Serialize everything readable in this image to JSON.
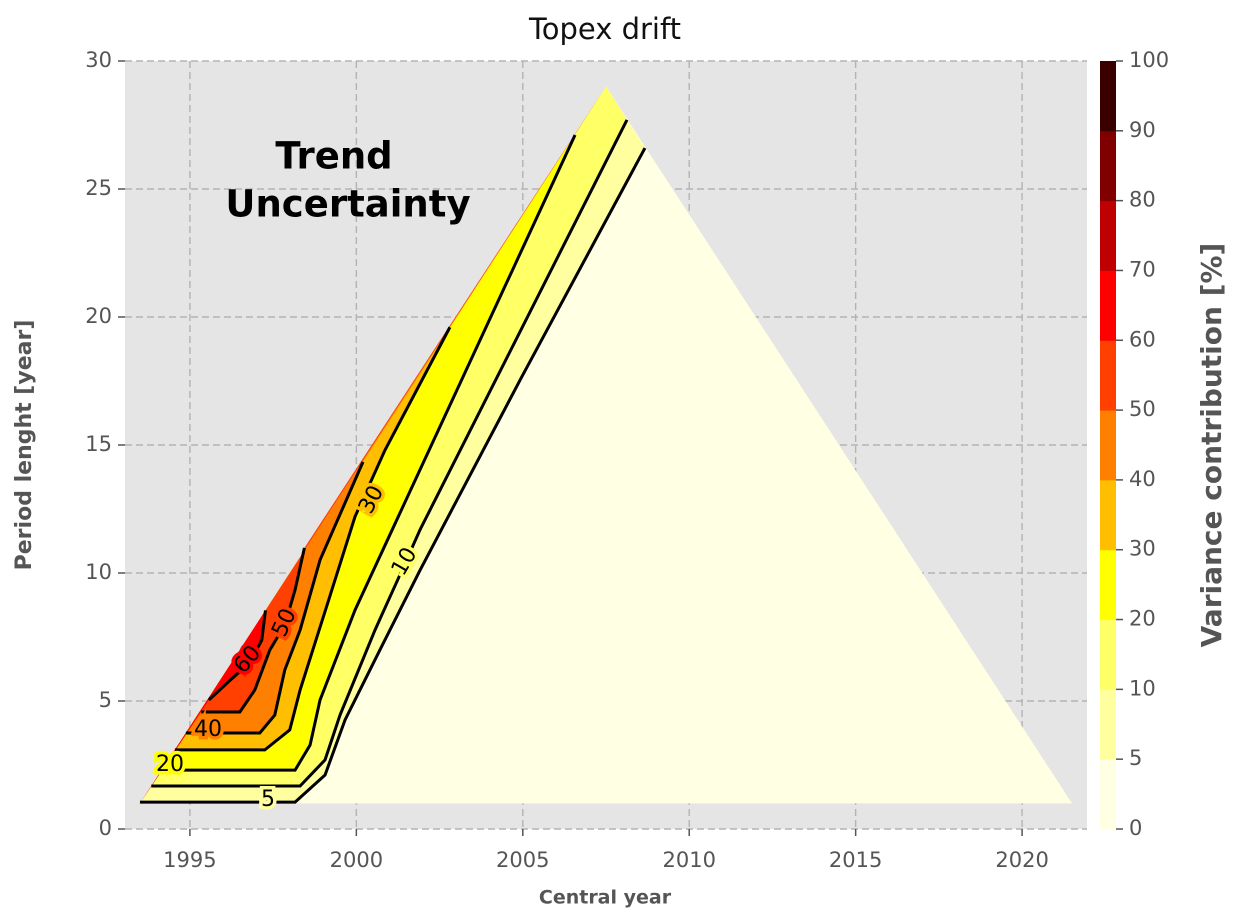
{
  "chart_data": {
    "type": "contour",
    "title": "Topex drift",
    "xlabel": "Central year",
    "ylabel": "Period lenght [year]",
    "colorbar_label": "Variance contribution [%]",
    "annotation": [
      "Trend",
      "Uncertainty"
    ],
    "xlim": [
      1993.05,
      2021.95
    ],
    "ylim": [
      0,
      30
    ],
    "xticks": [
      1995,
      2000,
      2005,
      2010,
      2015,
      2020
    ],
    "yticks": [
      0,
      5,
      10,
      15,
      20,
      25,
      30
    ],
    "grid": true,
    "levels": [
      0,
      5,
      10,
      20,
      30,
      40,
      50,
      60,
      70,
      80,
      90,
      100
    ],
    "colors": [
      "#ffffe4",
      "#ffffa0",
      "#ffff66",
      "#ffff00",
      "#ffbf00",
      "#ff8000",
      "#ff4000",
      "#ff0000",
      "#bf0000",
      "#800000",
      "#3a0000"
    ],
    "domain": {
      "x": [
        1993.5,
        2007.5,
        2021.5
      ],
      "y": [
        1,
        29,
        1
      ]
    },
    "contours": [
      {
        "level": 5,
        "x": [
          1993.5,
          1998.0,
          1998.16,
          1999.06,
          1999.66,
          2000.71,
          2001.91,
          2004.92,
          2008.67
        ],
        "y": [
          1.05,
          1.05,
          1.05,
          2.11,
          4.26,
          7.0,
          10.1,
          17.54,
          26.6
        ]
      },
      {
        "level": 10,
        "x": [
          1993.84,
          1998.31,
          1999.06,
          1999.51,
          2000.56,
          2001.3,
          2001.91,
          2008.13
        ],
        "y": [
          1.68,
          1.68,
          2.7,
          4.45,
          7.77,
          9.9,
          11.68,
          27.7
        ]
      },
      {
        "level": 20,
        "x": [
          1994.15,
          1998.16,
          1998.61,
          1998.91,
          1999.96,
          2006.57
        ],
        "y": [
          2.3,
          2.3,
          3.28,
          5.04,
          8.55,
          27.11
        ]
      },
      {
        "level": 30,
        "x": [
          1994.55,
          1997.25,
          1998.0,
          1998.31,
          1999.06,
          1999.96,
          2000.86,
          2002.81
        ],
        "y": [
          3.09,
          3.09,
          3.87,
          5.43,
          8.5,
          12.2,
          14.8,
          19.6
        ]
      },
      {
        "level": 40,
        "x": [
          1994.88,
          1997.1,
          1997.55,
          1997.85,
          1998.31,
          1998.91,
          2000.2
        ],
        "y": [
          3.75,
          3.75,
          4.45,
          6.21,
          7.77,
          10.51,
          14.34
        ]
      },
      {
        "level": 50,
        "x": [
          1995.34,
          1996.5,
          1996.95,
          1997.4,
          1997.85,
          1998.16,
          1998.44
        ],
        "y": [
          4.57,
          4.57,
          5.43,
          6.99,
          7.97,
          9.34,
          10.98
        ]
      },
      {
        "level": 60,
        "x": [
          1995.57,
          1996.2,
          1996.8,
          1997.16,
          1997.27
        ],
        "y": [
          5.04,
          5.8,
          6.5,
          7.38,
          8.54
        ]
      }
    ]
  }
}
